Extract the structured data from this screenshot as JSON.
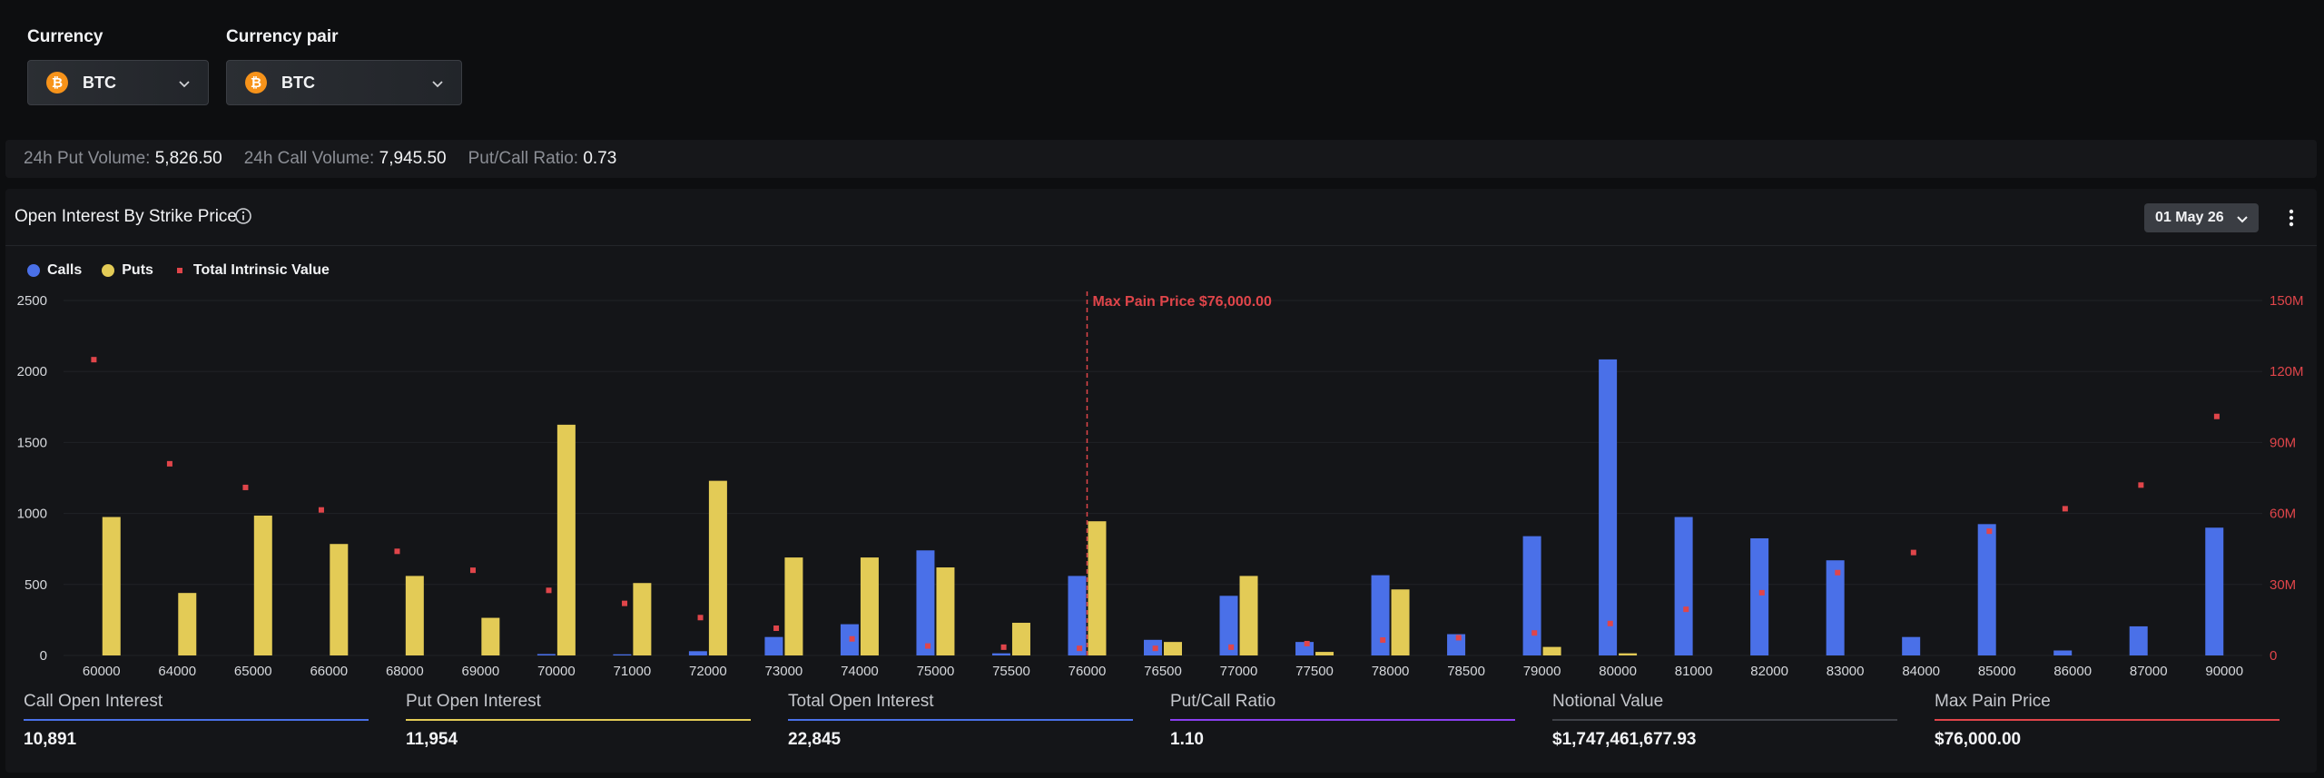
{
  "controls": {
    "currency": {
      "label": "Currency",
      "value": "BTC",
      "coin_glyph": "₿"
    },
    "pair": {
      "label": "Currency pair",
      "value": "BTC",
      "coin_glyph": "₿"
    }
  },
  "stats": [
    {
      "key": "24h Put Volume:",
      "value": "5,826.50"
    },
    {
      "key": "24h Call Volume:",
      "value": "7,945.50"
    },
    {
      "key": "Put/Call Ratio:",
      "value": "0.73"
    }
  ],
  "panel": {
    "title": "Open Interest By Strike Price",
    "date": "01 May 26",
    "icons": {
      "info": "info-icon",
      "date_chevron": "chevron-down-icon",
      "menu": "kebab-menu-icon"
    }
  },
  "legend": [
    {
      "label": "Calls",
      "color": "#4a70e8",
      "shape": "circle"
    },
    {
      "label": "Puts",
      "color": "#e3cb56",
      "shape": "circle"
    },
    {
      "label": "Total Intrinsic Value",
      "color": "#e0454a",
      "shape": "square"
    }
  ],
  "chart_data": {
    "type": "bar",
    "title": "Open Interest By Strike Price",
    "categories": [
      "60000",
      "64000",
      "65000",
      "66000",
      "68000",
      "69000",
      "70000",
      "71000",
      "72000",
      "73000",
      "74000",
      "75000",
      "75500",
      "76000",
      "76500",
      "77000",
      "77500",
      "78000",
      "78500",
      "79000",
      "80000",
      "81000",
      "82000",
      "83000",
      "84000",
      "85000",
      "86000",
      "87000",
      "90000"
    ],
    "series": [
      {
        "name": "Calls",
        "color": "#4a70e8",
        "axis": "left",
        "values": [
          0,
          0,
          0,
          0,
          0,
          0,
          10,
          8,
          30,
          130,
          220,
          740,
          15,
          560,
          110,
          420,
          95,
          565,
          150,
          840,
          2085,
          975,
          825,
          670,
          130,
          925,
          35,
          205,
          900
        ]
      },
      {
        "name": "Puts",
        "color": "#e3cb56",
        "axis": "left",
        "values": [
          975,
          440,
          985,
          785,
          560,
          265,
          1625,
          510,
          1230,
          690,
          690,
          620,
          230,
          945,
          95,
          560,
          25,
          465,
          0,
          60,
          15,
          0,
          0,
          0,
          0,
          0,
          0,
          0,
          0
        ]
      },
      {
        "name": "Total Intrinsic Value",
        "color": "#e0454a",
        "axis": "right",
        "type": "scatter",
        "values": [
          125000000,
          81000000,
          71000000,
          61500000,
          44000000,
          36000000,
          27500000,
          22000000,
          16000000,
          11500000,
          7000000,
          4000000,
          3500000,
          3000000,
          3000000,
          3500000,
          5000000,
          6500000,
          7500000,
          9500000,
          13500000,
          19500000,
          26500000,
          35000000,
          43500000,
          52500000,
          62000000,
          72000000,
          101000000
        ]
      }
    ],
    "ylim": [
      0,
      2500
    ],
    "yticks": [
      0,
      500,
      1000,
      1500,
      2000,
      2500
    ],
    "y2lim": [
      0,
      150000000
    ],
    "y2ticks": [
      "0",
      "30M",
      "60M",
      "90M",
      "120M",
      "150M"
    ],
    "max_pain": {
      "category": "76000",
      "label": "Max Pain Price $76,000.00",
      "color": "#e0454a"
    },
    "grid": true,
    "legend_position": "top-left"
  },
  "metrics": [
    {
      "label": "Call Open Interest",
      "value": "10,891",
      "color": "#4a70e8"
    },
    {
      "label": "Put Open Interest",
      "value": "11,954",
      "color": "#e3cb56"
    },
    {
      "label": "Total Open Interest",
      "value": "22,845",
      "color": "#4a70e8"
    },
    {
      "label": "Put/Call Ratio",
      "value": "1.10",
      "color": "#8a3ff0"
    },
    {
      "label": "Notional Value",
      "value": "$1,747,461,677.93",
      "color": "#3f4147"
    },
    {
      "label": "Max Pain Price",
      "value": "$76,000.00",
      "color": "#e0454a"
    }
  ]
}
